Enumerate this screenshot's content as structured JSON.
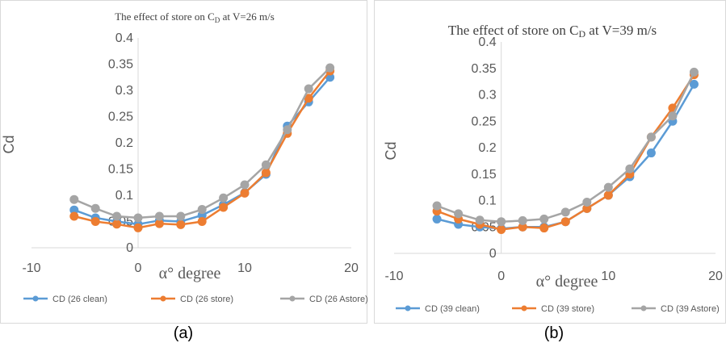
{
  "chart_data": [
    {
      "type": "line",
      "title_main": "The effect of store on C",
      "title_sub": "D",
      "title_tail": " at V=26 m/s",
      "xlabel": "α° degree",
      "ylabel": "Cd",
      "xlim": [
        -10,
        20
      ],
      "ylim": [
        0,
        0.4
      ],
      "xticks": [
        "-10",
        "0",
        "10",
        "20"
      ],
      "yticks": [
        "0",
        "0.05",
        "0.1",
        "0.15",
        "0.2",
        "0.25",
        "0.3",
        "0.35",
        "0.4"
      ],
      "x": [
        -6,
        -4,
        -2,
        0,
        2,
        4,
        6,
        8,
        10,
        12,
        14,
        16,
        18
      ],
      "series": [
        {
          "name": "CD (26 clean)",
          "color": "#5b9bd5",
          "values": [
            0.072,
            0.057,
            0.05,
            0.045,
            0.052,
            0.05,
            0.062,
            0.082,
            0.105,
            0.14,
            0.232,
            0.278,
            0.325
          ]
        },
        {
          "name": "CD (26 store)",
          "color": "#ed7d31",
          "values": [
            0.06,
            0.05,
            0.045,
            0.038,
            0.046,
            0.044,
            0.05,
            0.077,
            0.104,
            0.143,
            0.218,
            0.285,
            0.337
          ]
        },
        {
          "name": "CD (26 Astore)",
          "color": "#a5a5a5",
          "values": [
            0.092,
            0.075,
            0.06,
            0.057,
            0.06,
            0.06,
            0.073,
            0.095,
            0.12,
            0.158,
            0.225,
            0.303,
            0.343
          ]
        }
      ],
      "legend": "bottom",
      "caption": "(a)"
    },
    {
      "type": "line",
      "title_main": "The effect of store on C",
      "title_sub": "D",
      "title_tail": " at V=39  m/s",
      "xlabel": "α° degree",
      "ylabel": "Cd",
      "xlim": [
        -10,
        20
      ],
      "ylim": [
        0,
        0.4
      ],
      "xticks": [
        "-10",
        "0",
        "10",
        "20"
      ],
      "yticks": [
        "0",
        "0.05",
        "0.1",
        "0.15",
        "0.2",
        "0.25",
        "0.3",
        "0.35",
        "0.4"
      ],
      "x": [
        -6,
        -4,
        -2,
        0,
        2,
        4,
        6,
        8,
        10,
        12,
        14,
        16,
        18
      ],
      "series": [
        {
          "name": "CD (39 clean)",
          "color": "#5b9bd5",
          "values": [
            0.065,
            0.055,
            0.05,
            0.047,
            0.05,
            0.05,
            0.06,
            0.085,
            0.11,
            0.145,
            0.19,
            0.25,
            0.32
          ]
        },
        {
          "name": "CD (39 store)",
          "color": "#ed7d31",
          "values": [
            0.08,
            0.065,
            0.055,
            0.045,
            0.05,
            0.048,
            0.06,
            0.085,
            0.11,
            0.15,
            0.22,
            0.275,
            0.338
          ]
        },
        {
          "name": "CD (39 Astore)",
          "color": "#a5a5a5",
          "values": [
            0.09,
            0.075,
            0.063,
            0.06,
            0.062,
            0.065,
            0.078,
            0.097,
            0.125,
            0.16,
            0.22,
            0.26,
            0.343
          ]
        }
      ],
      "legend": "bottom",
      "caption": "(b)"
    }
  ]
}
